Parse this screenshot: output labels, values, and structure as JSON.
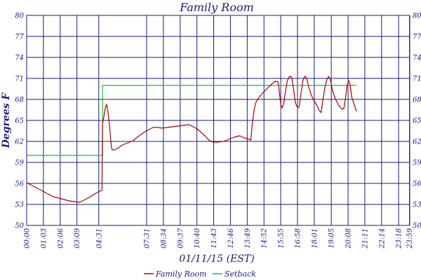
{
  "chart_data": {
    "type": "line",
    "title": "Family Room",
    "xlabel": "01/11/15 (EST)",
    "ylabel": "Degrees F",
    "ylim": [
      50,
      80
    ],
    "yticks": [
      50,
      53,
      56,
      59,
      62,
      65,
      68,
      71,
      74,
      77,
      80
    ],
    "xlim": [
      0,
      1440
    ],
    "xticks": [
      {
        "label": "00:00",
        "t": 0
      },
      {
        "label": "01:03",
        "t": 63
      },
      {
        "label": "02:06",
        "t": 126
      },
      {
        "label": "03:09",
        "t": 189
      },
      {
        "label": "04:31",
        "t": 271
      },
      {
        "label": "07:31",
        "t": 451
      },
      {
        "label": "08:34",
        "t": 514
      },
      {
        "label": "09:37",
        "t": 577
      },
      {
        "label": "10:40",
        "t": 640
      },
      {
        "label": "11:43",
        "t": 703
      },
      {
        "label": "12:46",
        "t": 766
      },
      {
        "label": "13:49",
        "t": 829
      },
      {
        "label": "14:52",
        "t": 892
      },
      {
        "label": "15:55",
        "t": 955
      },
      {
        "label": "16:58",
        "t": 1018
      },
      {
        "label": "18:01",
        "t": 1081
      },
      {
        "label": "19:05",
        "t": 1145
      },
      {
        "label": "20:08",
        "t": 1208
      },
      {
        "label": "21:11",
        "t": 1271
      },
      {
        "label": "22:14",
        "t": 1334
      },
      {
        "label": "23:18",
        "t": 1398
      },
      {
        "label": "23:59",
        "t": 1439
      }
    ],
    "grid": true,
    "legend": "bottom",
    "colors": {
      "family_room": "#aa0000",
      "setback": "#22bb22",
      "grid": "#1a1a80",
      "text": "#1a1a80"
    },
    "series": [
      {
        "name": "Family Room",
        "color": "#aa0000",
        "points": [
          [
            0,
            56.1
          ],
          [
            20,
            55.7
          ],
          [
            40,
            55.3
          ],
          [
            60,
            54.9
          ],
          [
            80,
            54.5
          ],
          [
            100,
            54.1
          ],
          [
            120,
            53.9
          ],
          [
            140,
            53.7
          ],
          [
            160,
            53.5
          ],
          [
            180,
            53.4
          ],
          [
            195,
            53.3
          ],
          [
            205,
            53.4
          ],
          [
            220,
            53.7
          ],
          [
            240,
            54.1
          ],
          [
            260,
            54.6
          ],
          [
            275,
            54.9
          ],
          [
            283,
            55.0
          ],
          [
            285,
            64.5
          ],
          [
            290,
            65.5
          ],
          [
            295,
            66.7
          ],
          [
            300,
            67.3
          ],
          [
            303,
            66.8
          ],
          [
            308,
            65.5
          ],
          [
            313,
            63.5
          ],
          [
            318,
            61.4
          ],
          [
            321,
            60.8
          ],
          [
            330,
            60.8
          ],
          [
            345,
            61.1
          ],
          [
            360,
            61.5
          ],
          [
            380,
            61.8
          ],
          [
            400,
            62.1
          ],
          [
            415,
            62.6
          ],
          [
            430,
            63.0
          ],
          [
            445,
            63.4
          ],
          [
            460,
            63.7
          ],
          [
            475,
            64.0
          ],
          [
            490,
            64.0
          ],
          [
            510,
            63.9
          ],
          [
            530,
            64.0
          ],
          [
            550,
            64.1
          ],
          [
            570,
            64.2
          ],
          [
            590,
            64.3
          ],
          [
            610,
            64.4
          ],
          [
            625,
            64.1
          ],
          [
            640,
            63.8
          ],
          [
            655,
            63.3
          ],
          [
            670,
            62.8
          ],
          [
            685,
            62.2
          ],
          [
            700,
            61.9
          ],
          [
            720,
            61.9
          ],
          [
            740,
            62.0
          ],
          [
            760,
            62.3
          ],
          [
            780,
            62.6
          ],
          [
            800,
            62.8
          ],
          [
            820,
            62.5
          ],
          [
            835,
            62.3
          ],
          [
            843,
            62.2
          ],
          [
            848,
            64.5
          ],
          [
            855,
            66.5
          ],
          [
            862,
            67.6
          ],
          [
            870,
            68.1
          ],
          [
            880,
            68.6
          ],
          [
            895,
            69.2
          ],
          [
            910,
            69.8
          ],
          [
            925,
            70.3
          ],
          [
            935,
            70.6
          ],
          [
            945,
            70.5
          ],
          [
            950,
            69.0
          ],
          [
            955,
            67.2
          ],
          [
            960,
            66.8
          ],
          [
            966,
            67.4
          ],
          [
            972,
            69.0
          ],
          [
            980,
            70.7
          ],
          [
            988,
            71.3
          ],
          [
            996,
            71.2
          ],
          [
            1003,
            69.5
          ],
          [
            1010,
            67.5
          ],
          [
            1018,
            66.8
          ],
          [
            1024,
            66.9
          ],
          [
            1030,
            68.5
          ],
          [
            1038,
            70.6
          ],
          [
            1045,
            71.3
          ],
          [
            1052,
            71.1
          ],
          [
            1060,
            69.8
          ],
          [
            1070,
            68.6
          ],
          [
            1080,
            67.8
          ],
          [
            1090,
            67.2
          ],
          [
            1100,
            66.4
          ],
          [
            1107,
            66.1
          ],
          [
            1113,
            67.8
          ],
          [
            1120,
            69.5
          ],
          [
            1128,
            70.8
          ],
          [
            1135,
            71.3
          ],
          [
            1142,
            70.8
          ],
          [
            1150,
            69.2
          ],
          [
            1160,
            68.1
          ],
          [
            1172,
            67.2
          ],
          [
            1185,
            66.6
          ],
          [
            1192,
            66.7
          ],
          [
            1198,
            68.0
          ],
          [
            1204,
            69.9
          ],
          [
            1210,
            70.7
          ],
          [
            1215,
            70.3
          ],
          [
            1222,
            68.3
          ],
          [
            1230,
            67.4
          ],
          [
            1237,
            66.6
          ],
          [
            1240,
            66.3
          ]
        ]
      },
      {
        "name": "Setback",
        "color": "#22bb22",
        "points": [
          [
            0,
            60
          ],
          [
            285,
            60
          ],
          [
            285,
            70
          ],
          [
            1240,
            70
          ]
        ]
      }
    ]
  }
}
